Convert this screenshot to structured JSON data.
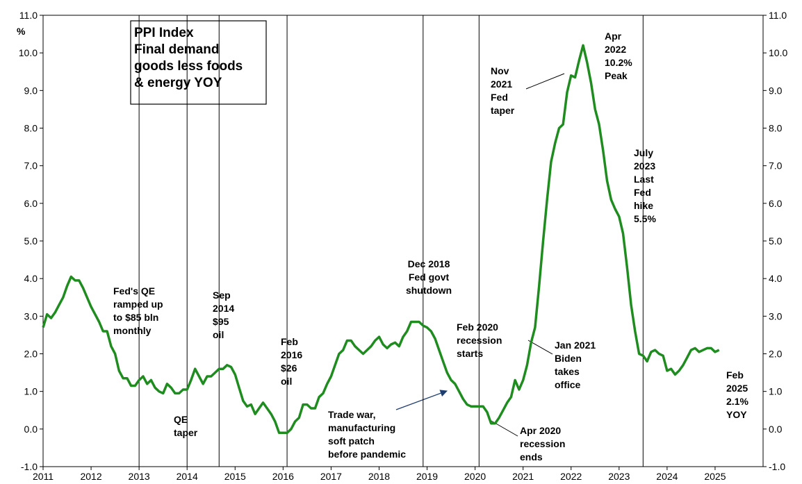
{
  "chart_data": {
    "type": "line",
    "title": [
      "PPI Index",
      "Final demand",
      "goods less foods",
      "& energy YOY"
    ],
    "y_unit": "%",
    "color": "#1e8c1e",
    "xlim": [
      2011,
      2026
    ],
    "xticks": [
      2011,
      2012,
      2013,
      2014,
      2015,
      2016,
      2017,
      2018,
      2019,
      2020,
      2021,
      2022,
      2023,
      2024,
      2025
    ],
    "ylim": [
      -1,
      11
    ],
    "yticks": [
      {
        "value": -1,
        "label": "-1.0"
      },
      {
        "value": 0,
        "label": "0.0"
      },
      {
        "value": 1,
        "label": "1.0"
      },
      {
        "value": 2,
        "label": "2.0"
      },
      {
        "value": 3,
        "label": "3.0"
      },
      {
        "value": 4,
        "label": "4.0"
      },
      {
        "value": 5,
        "label": "5.0"
      },
      {
        "value": 6,
        "label": "6.0"
      },
      {
        "value": 7,
        "label": "7.0"
      },
      {
        "value": 8,
        "label": "8.0"
      },
      {
        "value": 9,
        "label": "9.0"
      },
      {
        "value": 10,
        "label": "10.0"
      },
      {
        "value": 11,
        "label": "11.0"
      }
    ],
    "y2lim": [
      -1,
      11
    ],
    "y2ticks": [
      {
        "value": -1,
        "label": "-1.0"
      },
      {
        "value": 0,
        "label": "0.0"
      },
      {
        "value": 1,
        "label": "1.0"
      },
      {
        "value": 2,
        "label": "2.0"
      },
      {
        "value": 3,
        "label": "3.0"
      },
      {
        "value": 4,
        "label": "4.0"
      },
      {
        "value": 5,
        "label": "5.0"
      },
      {
        "value": 6,
        "label": "6.0"
      },
      {
        "value": 7,
        "label": "7.0"
      },
      {
        "value": 8,
        "label": "8.0"
      },
      {
        "value": 9,
        "label": "9.0"
      },
      {
        "value": 10,
        "label": "10.0"
      },
      {
        "value": 11,
        "label": "11.0"
      }
    ],
    "x": [
      2011,
      2011.083,
      2011.167,
      2011.25,
      2011.333,
      2011.417,
      2011.5,
      2011.583,
      2011.667,
      2011.75,
      2011.833,
      2011.917,
      2012,
      2012.083,
      2012.167,
      2012.25,
      2012.333,
      2012.417,
      2012.5,
      2012.583,
      2012.667,
      2012.75,
      2012.833,
      2012.917,
      2013,
      2013.083,
      2013.167,
      2013.25,
      2013.333,
      2013.417,
      2013.5,
      2013.583,
      2013.667,
      2013.75,
      2013.833,
      2013.917,
      2014,
      2014.083,
      2014.167,
      2014.25,
      2014.333,
      2014.417,
      2014.5,
      2014.583,
      2014.667,
      2014.75,
      2014.833,
      2014.917,
      2015,
      2015.083,
      2015.167,
      2015.25,
      2015.333,
      2015.417,
      2015.5,
      2015.583,
      2015.667,
      2015.75,
      2015.833,
      2015.917,
      2016,
      2016.083,
      2016.167,
      2016.25,
      2016.333,
      2016.417,
      2016.5,
      2016.583,
      2016.667,
      2016.75,
      2016.833,
      2016.917,
      2017,
      2017.083,
      2017.167,
      2017.25,
      2017.333,
      2017.417,
      2017.5,
      2017.583,
      2017.667,
      2017.75,
      2017.833,
      2017.917,
      2018,
      2018.083,
      2018.167,
      2018.25,
      2018.333,
      2018.417,
      2018.5,
      2018.583,
      2018.667,
      2018.75,
      2018.833,
      2018.917,
      2019,
      2019.083,
      2019.167,
      2019.25,
      2019.333,
      2019.417,
      2019.5,
      2019.583,
      2019.667,
      2019.75,
      2019.833,
      2019.917,
      2020,
      2020.083,
      2020.167,
      2020.25,
      2020.333,
      2020.417,
      2020.5,
      2020.583,
      2020.667,
      2020.75,
      2020.833,
      2020.917,
      2021,
      2021.083,
      2021.167,
      2021.25,
      2021.333,
      2021.417,
      2021.5,
      2021.583,
      2021.667,
      2021.75,
      2021.833,
      2021.917,
      2022,
      2022.083,
      2022.167,
      2022.25,
      2022.333,
      2022.417,
      2022.5,
      2022.583,
      2022.667,
      2022.75,
      2022.833,
      2022.917,
      2023,
      2023.083,
      2023.167,
      2023.25,
      2023.333,
      2023.417,
      2023.5,
      2023.583,
      2023.667,
      2023.75,
      2023.833,
      2023.917,
      2024,
      2024.083,
      2024.167,
      2024.25,
      2024.333,
      2024.417,
      2024.5,
      2024.583,
      2024.667,
      2024.75,
      2024.833,
      2024.917,
      2025,
      2025.083
    ],
    "values": [
      2.7,
      3.05,
      2.95,
      3.1,
      3.3,
      3.5,
      3.8,
      4.05,
      3.95,
      3.95,
      3.75,
      3.5,
      3.25,
      3.05,
      2.85,
      2.6,
      2.6,
      2.2,
      2.0,
      1.55,
      1.35,
      1.35,
      1.15,
      1.15,
      1.3,
      1.4,
      1.2,
      1.3,
      1.1,
      1.0,
      0.95,
      1.2,
      1.1,
      0.95,
      0.95,
      1.05,
      1.05,
      1.3,
      1.6,
      1.4,
      1.2,
      1.4,
      1.4,
      1.5,
      1.6,
      1.6,
      1.7,
      1.65,
      1.45,
      1.1,
      0.75,
      0.6,
      0.65,
      0.4,
      0.55,
      0.7,
      0.55,
      0.4,
      0.2,
      -0.1,
      -0.1,
      -0.1,
      0.0,
      0.2,
      0.3,
      0.65,
      0.65,
      0.55,
      0.55,
      0.85,
      0.95,
      1.2,
      1.4,
      1.7,
      2.0,
      2.1,
      2.35,
      2.35,
      2.2,
      2.1,
      2.0,
      2.1,
      2.2,
      2.35,
      2.45,
      2.25,
      2.15,
      2.25,
      2.3,
      2.2,
      2.45,
      2.6,
      2.85,
      2.85,
      2.85,
      2.75,
      2.7,
      2.6,
      2.4,
      2.1,
      1.8,
      1.5,
      1.3,
      1.2,
      1.0,
      0.8,
      0.65,
      0.6,
      0.6,
      0.6,
      0.6,
      0.45,
      0.15,
      0.15,
      0.3,
      0.5,
      0.7,
      0.85,
      1.3,
      1.05,
      1.3,
      1.7,
      2.3,
      2.7,
      3.8,
      5.0,
      6.1,
      7.1,
      7.6,
      8.0,
      8.1,
      8.95,
      9.4,
      9.35,
      9.8,
      10.2,
      9.75,
      9.2,
      8.5,
      8.1,
      7.4,
      6.6,
      6.1,
      5.85,
      5.65,
      5.2,
      4.3,
      3.3,
      2.6,
      2.0,
      1.95,
      1.8,
      2.05,
      2.1,
      2.0,
      1.95,
      1.55,
      1.6,
      1.45,
      1.55,
      1.7,
      1.9,
      2.1,
      2.15,
      2.05,
      2.1,
      2.15,
      2.15,
      2.05,
      2.1
    ],
    "event_lines": [
      2013,
      2014,
      2014.667,
      2016.083,
      2018.917,
      2020.083,
      2023.5
    ],
    "annotations": [
      {
        "lines": [
          "Fed's QE",
          "ramped up",
          "to $85 bln",
          "monthly"
        ]
      },
      {
        "lines": [
          "QE",
          "taper"
        ]
      },
      {
        "lines": [
          "Sep",
          "2014",
          "$95",
          "oil"
        ]
      },
      {
        "lines": [
          "Feb",
          "2016",
          "$26",
          "oil"
        ]
      },
      {
        "lines": [
          "Dec 2018",
          "Fed govt",
          "shutdown"
        ]
      },
      {
        "lines": [
          "Feb 2020",
          "recession",
          "starts"
        ]
      },
      {
        "lines": [
          "Trade war,",
          "manufacturing",
          "soft patch",
          "before pandemic"
        ]
      },
      {
        "lines": [
          "Apr 2020",
          "recession",
          "ends"
        ]
      },
      {
        "lines": [
          "Jan 2021",
          "Biden",
          "takes",
          "office"
        ]
      },
      {
        "lines": [
          "Nov",
          "2021",
          "Fed",
          "taper"
        ]
      },
      {
        "lines": [
          "Apr",
          "2022",
          "10.2%",
          "Peak"
        ]
      },
      {
        "lines": [
          "July",
          "2023",
          "Last",
          "Fed",
          "hike",
          "5.5%"
        ]
      },
      {
        "lines": [
          "Feb",
          "2025",
          "2.1%",
          "YOY"
        ]
      }
    ]
  }
}
